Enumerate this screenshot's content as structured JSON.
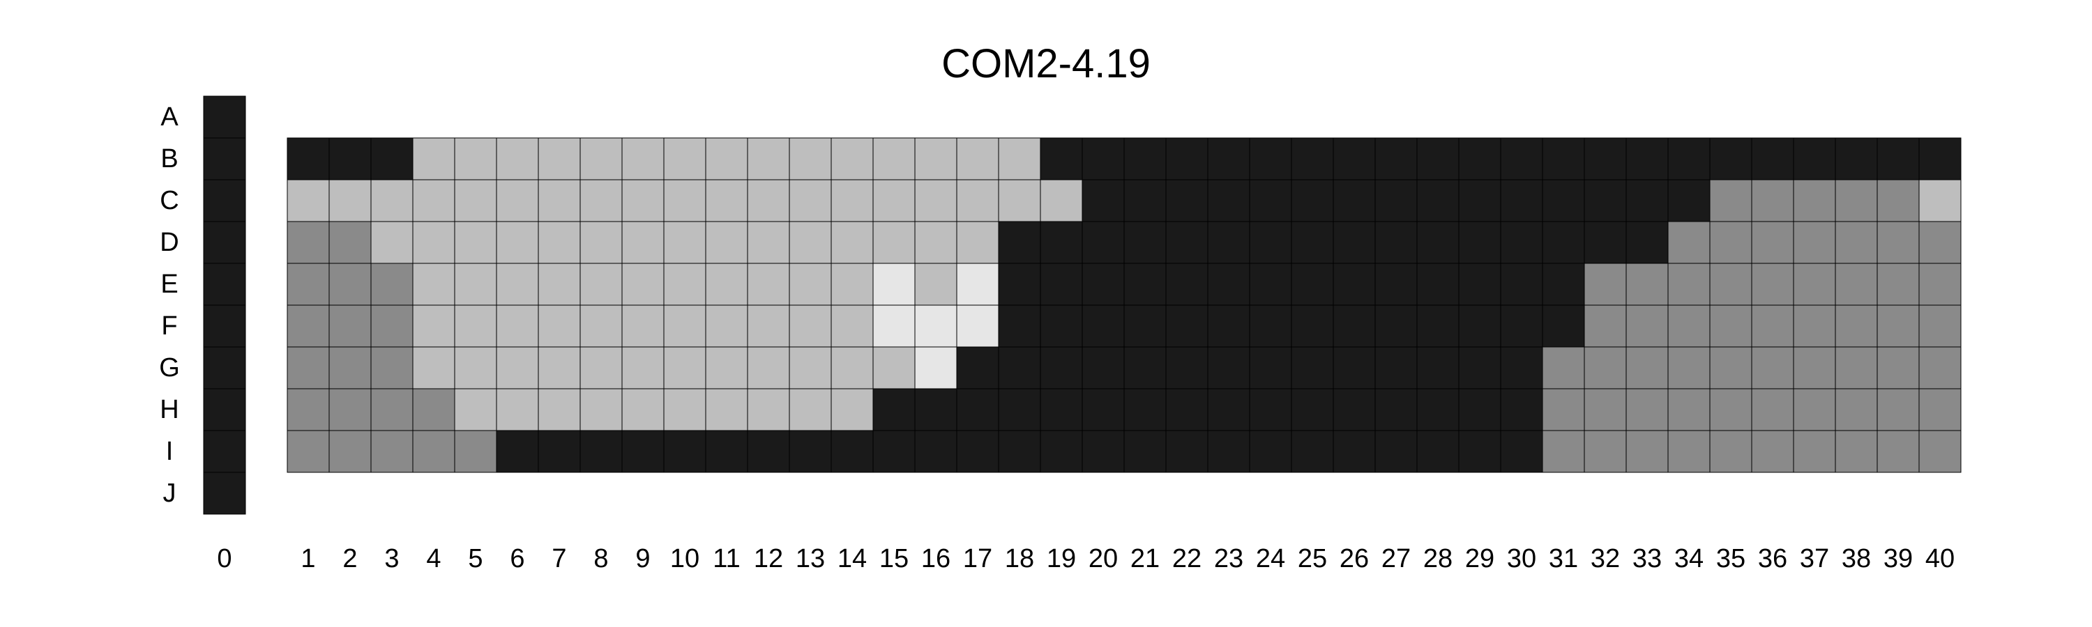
{
  "title": "COM2-4.19",
  "row_labels": [
    "A",
    "B",
    "C",
    "D",
    "E",
    "F",
    "G",
    "H",
    "I",
    "J"
  ],
  "column_labels": [
    "0",
    "1",
    "2",
    "3",
    "4",
    "5",
    "6",
    "7",
    "8",
    "9",
    "10",
    "11",
    "12",
    "13",
    "14",
    "15",
    "16",
    "17",
    "18",
    "19",
    "20",
    "21",
    "22",
    "23",
    "24",
    "25",
    "26",
    "27",
    "28",
    "29",
    "30",
    "31",
    "32",
    "33",
    "34",
    "35",
    "36",
    "37",
    "38",
    "39",
    "40"
  ],
  "palette": {
    "K": "#1a1a1a",
    "L": "#bebebe",
    "M": "#8a8a8a",
    "W": "#e6e6e6"
  },
  "legend_key": {
    "K": "black",
    "L": "light-grey",
    "M": "mid-grey",
    "W": "near-white"
  },
  "column_zero": {
    "rows": [
      "A",
      "B",
      "C",
      "D",
      "E",
      "F",
      "G",
      "H",
      "I",
      "J"
    ],
    "fill": "K"
  },
  "plate_rows": {
    "B": "KKKLLLLLLLLLLLLLLLKKKKKKKKKKKKKKKKKKKKKK",
    "C": "LLLLLLLLLLLLLLLLLLLKKKKKKKKKKKKKKKMMMMML",
    "D": "MMLLLLLLLLLLLLLLLKKKKKKKKKKKKKKKKMMMMMMM",
    "E": "MMMLLLLLLLLLLLWLWKKKKKKKKKKKKKKMMMMMMMMM",
    "F": "MMMLLLLLLLLLLLWWWKKKKKKKKKKKKKKMMMMMMMMM",
    "G": "MMMLLLLLLLLLLLLWKKKKKKKKKKKKKKMMMMMMMMMM",
    "H": "MMMMLLLLLLLLLLKKKKKKKKKKKKKKKKMMMMMMMMMM",
    "I": "MMMMMKKKKKKKKKKKKKKKKKKKKKKKKKMMMMMMMMMM"
  }
}
